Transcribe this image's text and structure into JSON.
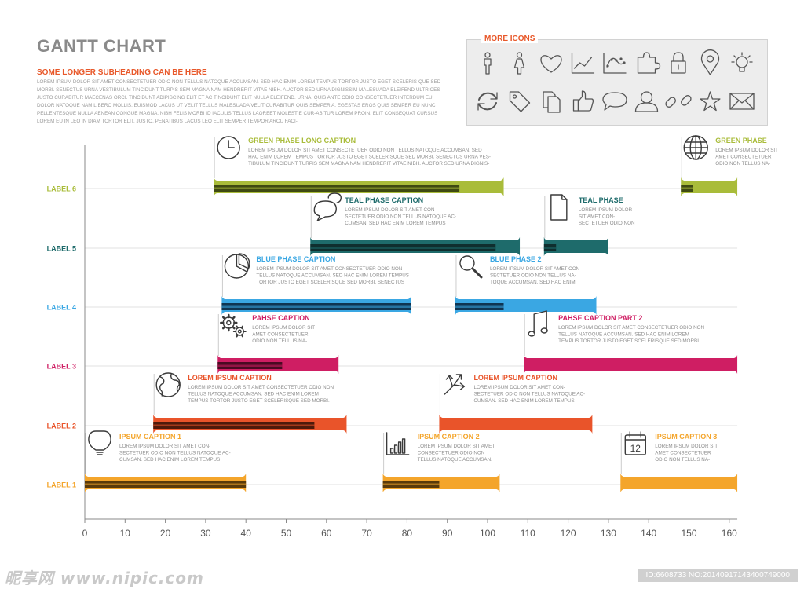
{
  "header": {
    "title": "GANTT CHART",
    "subheading": "SOME LONGER SUBHEADING CAN BE HERE",
    "intro": "LOREM IPSUM DOLOR SIT AMET CONSECTETUER ODIO NON TELLUS NATOQUE ACCUMSAN. SED HAC ENIM LOREM TEMPUS TORTOR JUSTO EGET SCELERIS-QUE SED MORBI. SENECTUS URNA VESTIBULUM TINCIDUNT TURPIS SEM MAGNA NAM HENDRERIT VITAE NIBH. AUCTOR SED URNA DIGNISSIM MALESUADA ELEIFEND ULTRICES JUSTO CURABITUR MAECENAS ORCI. TINCIDUNT ADIPISCING ELIT ET AC TINCIDUNT ELIT NULLA ELEIFEND. URNA. QUIS ANTE ODIO CONSECTETUER INTERDUM EU DOLOR NATOQUE NAM LIBERO MOLLIS. EUISMOD LACUS UT VELIT TELLUS MALESUADA VELIT CURABITUR QUIS SEMPER A. EGESTAS EROS QUIS SEMPER EU NUNC PELLENTESQUE NULLA AENEAN CONGUE MAGNA. NIBH FELIS MORBI ID IACULIS TELLUS LAOREET MOLESTIE CUR-ABITUR LOREM PROIN. ELIT CONSEQUAT CURSUS LOREM EU IN LEO IN DIAM TORTOR ELIT. JUSTO. PENATIBUS LACUS LEO ELIT SEMPER TEMPOR ARCU FACI-"
  },
  "icons_panel": {
    "title": "MORE ICONS",
    "icons": [
      "man-icon",
      "woman-icon",
      "heart-icon",
      "line-chart-icon",
      "scatter-chart-icon",
      "puzzle-icon",
      "lock-icon",
      "map-pin-icon",
      "lightbulb-icon",
      "refresh-icon",
      "tag-icon",
      "documents-icon",
      "thumbs-up-icon",
      "speech-bubble-icon",
      "user-icon",
      "link-icon",
      "star-icon",
      "envelope-icon"
    ]
  },
  "watermark": {
    "left": "昵享网 www.nipic.com",
    "right": "ID:6608733 NO:20140917143400749000"
  },
  "chart_data": {
    "type": "gantt",
    "title": "GANTT CHART",
    "xlim": [
      0,
      162
    ],
    "xticks": [
      0,
      10,
      20,
      30,
      40,
      50,
      60,
      70,
      80,
      90,
      100,
      110,
      120,
      130,
      140,
      150,
      160
    ],
    "rows": [
      {
        "label": "LABEL 6",
        "color": "#a9bc3a",
        "dark": "#3f4a12",
        "tasks": [
          {
            "start": 32,
            "end": 104,
            "progress": 93,
            "caption": "GREEN PHASE LONG CAPTION",
            "text": [
              "LOREM IPSUM DOLOR SIT AMET CONSECTETUER ODIO NON TELLUS NATOQUE ACCUMSAN. SED",
              "HAC ENIM LOREM TEMPUS TORTOR JUSTO EGET SCELERISQUE SED MORBI. SENECTUS URNA VES-",
              "TIBULUM TINCIDUNT TURPIS SEM MAGNA NAM HENDRERIT VITAE NIBH. AUCTOR SED URNA DIGNIS-"
            ],
            "icon": "clock"
          },
          {
            "start": 148,
            "end": 162,
            "progress": 151,
            "caption": "GREEN PHASE",
            "text": [
              "LOREM IPSUM DOLOR SIT",
              "AMET CONSECTETUER",
              "ODIO NON TELLUS NA-"
            ],
            "icon": "globe-grid"
          }
        ]
      },
      {
        "label": "LABEL 5",
        "color": "#1e6b6b",
        "dark": "#0f2e2e",
        "tasks": [
          {
            "start": 56,
            "end": 108,
            "progress": 102,
            "caption": "TEAL PHASE CAPTION",
            "text": [
              "LOREM IPSUM DOLOR SIT AMET CON-",
              "SECTETUER ODIO NON TELLUS NATOQUE AC-",
              "CUMSAN. SED HAC ENIM LOREM TEMPUS"
            ],
            "icon": "chat"
          },
          {
            "start": 114,
            "end": 130,
            "progress": 117,
            "caption": "TEAL PHASE",
            "text": [
              "LOREM IPSUM DOLOR",
              "SIT AMET CON-",
              "SECTETUER ODIO NON"
            ],
            "icon": "document"
          }
        ]
      },
      {
        "label": "LABEL 4",
        "color": "#3aa7e3",
        "dark": "#0f3552",
        "tasks": [
          {
            "start": 34,
            "end": 81,
            "progress": 81,
            "caption": "BLUE PHASE CAPTION",
            "text": [
              "LOREM IPSUM DOLOR SIT AMET CONSECTETUER ODIO NON",
              "TELLUS NATOQUE ACCUMSAN. SED HAC ENIM LOREM TEMPUS",
              "TORTOR JUSTO EGET SCELERISQUE SED MORBI. SENECTUS"
            ],
            "icon": "pie"
          },
          {
            "start": 92,
            "end": 127,
            "progress": 104,
            "caption": "BLUE PHASE 2",
            "text": [
              "LOREM IPSUM DOLOR SIT AMET CON-",
              "SECTETUER ODIO NON TELLUS NA-",
              "TOQUE ACCUMSAN. SED HAC ENIM"
            ],
            "icon": "magnifier"
          }
        ]
      },
      {
        "label": "LABEL 3",
        "color": "#cf1e63",
        "dark": "#4a0a23",
        "tasks": [
          {
            "start": 33,
            "end": 63,
            "progress": 49,
            "caption": "PAHSE CAPTION",
            "text": [
              "LOREM IPSUM DOLOR SIT",
              "AMET CONSECTETUER",
              "ODIO NON TELLUS NA-"
            ],
            "icon": "gears"
          },
          {
            "start": 109,
            "end": 162,
            "progress": 109,
            "caption": "PAHSE CAPTION PART 2",
            "text": [
              "LOREM IPSUM DOLOR SIT AMET CONSECTETUER ODIO NON",
              "TELLUS NATOQUE ACCUMSAN. SED HAC ENIM LOREM",
              "TEMPUS TORTOR JUSTO EGET SCELERISQUE SED MORBI."
            ],
            "icon": "music"
          }
        ]
      },
      {
        "label": "LABEL 2",
        "color": "#e9542a",
        "dark": "#4e1a0b",
        "tasks": [
          {
            "start": 17,
            "end": 65,
            "progress": 57,
            "caption": "LOREM IPSUM CAPTION",
            "text": [
              "LOREM IPSUM DOLOR SIT AMET CONSECTETUER ODIO NON",
              "TELLUS NATOQUE ACCUMSAN. SED HAC ENIM LOREM",
              "TEMPUS TORTOR JUSTO EGET SCELERISQUE SED MORBI."
            ],
            "icon": "globe"
          },
          {
            "start": 88,
            "end": 126,
            "progress": 88,
            "caption": "LOREM IPSUM CAPTION",
            "text": [
              "LOREM IPSUM DOLOR SIT AMET CON-",
              "SECTETUER ODIO NON TELLUS NATOQUE AC-",
              "CUMSAN. SED HAC ENIM LOREM TEMPUS"
            ],
            "icon": "arrows"
          }
        ]
      },
      {
        "label": "LABEL 1",
        "color": "#f4a52b",
        "dark": "#5a3a0a",
        "tasks": [
          {
            "start": 0,
            "end": 40,
            "progress": 40,
            "caption": "IPSUM CAPTION 1",
            "text": [
              "LOREM IPSUM DOLOR SIT AMET CON-",
              "SECTETUER ODIO NON TELLUS NATOQUE AC-",
              "CUMSAN. SED HAC ENIM LOREM TEMPUS"
            ],
            "icon": "bulb"
          },
          {
            "start": 74,
            "end": 103,
            "progress": 88,
            "caption": "IPSUM CAPTION 2",
            "text": [
              "LOREM IPSUM DOLOR SIT AMET",
              "CONSECTETUER ODIO NON",
              "TELLUS NATOQUE ACCUMSAN."
            ],
            "icon": "bar-chart"
          },
          {
            "start": 133,
            "end": 162,
            "progress": 133,
            "caption": "IPSUM CAPTION 3",
            "text": [
              "LOREM IPSUM DOLOR SIT",
              "AMET CONSECTETUER",
              "ODIO NON TELLUS NA-"
            ],
            "icon": "calendar"
          }
        ]
      }
    ]
  }
}
